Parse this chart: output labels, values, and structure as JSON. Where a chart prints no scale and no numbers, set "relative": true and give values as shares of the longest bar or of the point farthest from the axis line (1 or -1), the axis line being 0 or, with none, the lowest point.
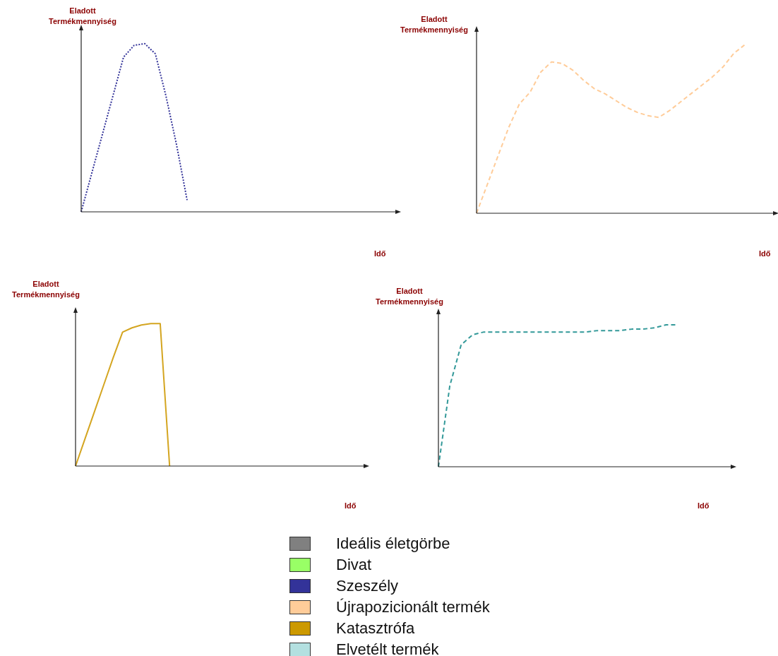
{
  "chart_data": [
    {
      "type": "line",
      "relative": true,
      "ylabel": "Eladott Termékmennyiség",
      "xlabel": "Idő",
      "line_style": "dotted",
      "categories": [
        null,
        null,
        null,
        null,
        null,
        null,
        null,
        null,
        null,
        null,
        null,
        null,
        null,
        null,
        null,
        null,
        null,
        null,
        null,
        null,
        null,
        null,
        null,
        null,
        null,
        null,
        null,
        null,
        null,
        null,
        null
      ],
      "series": [
        {
          "color": "#333399",
          "values": [
            0,
            0.23,
            0.46,
            0.69,
            0.92,
            0.99,
            1.0,
            0.94,
            0.69,
            0.4,
            0.07,
            null,
            null,
            null,
            null,
            null,
            null,
            null,
            null,
            null,
            null,
            null,
            null,
            null,
            null,
            null,
            null,
            null,
            null,
            null,
            null
          ]
        }
      ]
    },
    {
      "type": "line",
      "relative": true,
      "ylabel": "Eladott Termékmennyiség",
      "xlabel": "Idő",
      "line_style": "dashed",
      "categories": [
        null,
        null,
        null,
        null,
        null,
        null,
        null,
        null,
        null,
        null,
        null,
        null,
        null,
        null,
        null,
        null,
        null,
        null,
        null,
        null,
        null,
        null,
        null,
        null,
        null,
        null,
        null,
        null,
        null
      ],
      "series": [
        {
          "color": "#ffcc99",
          "values": [
            0,
            0.17,
            0.34,
            0.51,
            0.65,
            0.72,
            0.84,
            0.9,
            0.89,
            0.85,
            0.79,
            0.74,
            0.71,
            0.67,
            0.63,
            0.6,
            0.58,
            0.57,
            0.61,
            0.66,
            0.71,
            0.76,
            0.81,
            0.87,
            0.95,
            1.0,
            null,
            null,
            null
          ]
        }
      ]
    },
    {
      "type": "line",
      "relative": true,
      "ylabel": "Eladott Termékmennyiség",
      "xlabel": "Idő",
      "line_style": "solid",
      "categories": [
        null,
        null,
        null,
        null,
        null,
        null,
        null,
        null,
        null,
        null,
        null,
        null,
        null,
        null,
        null,
        null,
        null,
        null,
        null,
        null,
        null,
        null,
        null,
        null,
        null,
        null,
        null,
        null,
        null,
        null,
        null,
        null
      ],
      "series": [
        {
          "color": "#d4a520",
          "values": [
            0,
            0.19,
            0.38,
            0.57,
            0.76,
            0.94,
            0.97,
            0.99,
            1.0,
            1.0,
            0,
            null,
            null,
            null,
            null,
            null,
            null,
            null,
            null,
            null,
            null,
            null,
            null,
            null,
            null,
            null,
            null,
            null,
            null,
            null,
            null,
            null
          ]
        }
      ]
    },
    {
      "type": "line",
      "relative": true,
      "ylabel": "Eladott Termékmennyiség",
      "xlabel": "Idő",
      "line_style": "dashed",
      "categories": [
        null,
        null,
        null,
        null,
        null,
        null,
        null,
        null,
        null,
        null,
        null,
        null,
        null,
        null,
        null,
        null,
        null,
        null,
        null,
        null,
        null,
        null,
        null,
        null,
        null,
        null,
        null
      ],
      "series": [
        {
          "color": "#339999",
          "values": [
            0,
            0.57,
            0.86,
            0.93,
            0.95,
            0.95,
            0.95,
            0.95,
            0.95,
            0.95,
            0.95,
            0.95,
            0.95,
            0.95,
            0.96,
            0.96,
            0.96,
            0.97,
            0.97,
            0.98,
            1.0,
            1.0,
            null,
            null,
            null,
            null,
            null
          ]
        }
      ]
    },
    {
      "type": "other",
      "categories": [
        "Ideális életgörbe",
        "Divat",
        "Szeszély",
        "Újrapozicionált termék",
        "Katasztrófa",
        "Elvetélt termék"
      ],
      "colors": [
        "#808080",
        "#99ff66",
        "#333399",
        "#ffcc99",
        "#cc9900",
        "#b3e0e0"
      ]
    }
  ]
}
